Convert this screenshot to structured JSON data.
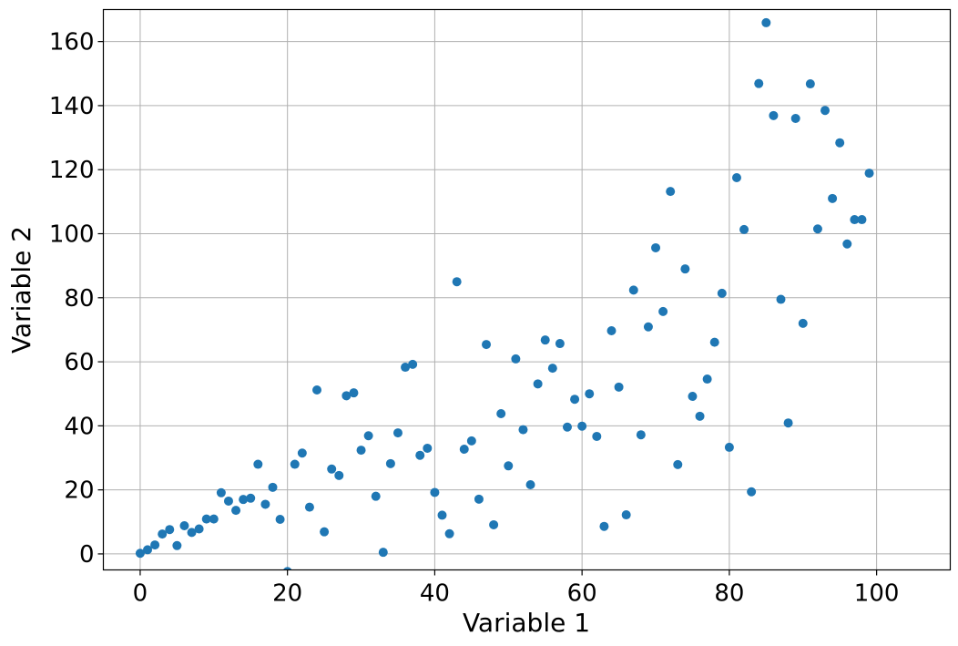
{
  "chart_data": {
    "type": "scatter",
    "title": "",
    "xlabel": "Variable 1",
    "ylabel": "Variable 2",
    "xlim": [
      -5,
      110
    ],
    "ylim": [
      -5,
      170
    ],
    "grid": true,
    "marker_color": "#1f77b4",
    "x_ticks": [
      {
        "value": 0,
        "label": "0"
      },
      {
        "value": 20,
        "label": "20"
      },
      {
        "value": 40,
        "label": "40"
      },
      {
        "value": 60,
        "label": "60"
      },
      {
        "value": 80,
        "label": "80"
      },
      {
        "value": 100,
        "label": "100"
      }
    ],
    "y_ticks": [
      {
        "value": 0,
        "label": "0"
      },
      {
        "value": 20,
        "label": "20"
      },
      {
        "value": 40,
        "label": "40"
      },
      {
        "value": 60,
        "label": "60"
      },
      {
        "value": 80,
        "label": "80"
      },
      {
        "value": 100,
        "label": "100"
      },
      {
        "value": 120,
        "label": "120"
      },
      {
        "value": 140,
        "label": "140"
      },
      {
        "value": 160,
        "label": "160"
      }
    ],
    "points": [
      [
        0,
        0.2
      ],
      [
        1,
        1.3
      ],
      [
        2,
        2.8
      ],
      [
        3,
        6.2
      ],
      [
        4,
        7.6
      ],
      [
        5,
        2.6
      ],
      [
        6,
        8.8
      ],
      [
        7,
        6.7
      ],
      [
        8,
        7.8
      ],
      [
        9,
        10.9
      ],
      [
        10,
        10.9
      ],
      [
        11,
        19.1
      ],
      [
        12,
        16.5
      ],
      [
        13,
        13.6
      ],
      [
        14,
        17.0
      ],
      [
        15,
        17.4
      ],
      [
        16,
        28.0
      ],
      [
        17,
        15.5
      ],
      [
        18,
        20.8
      ],
      [
        19,
        10.8
      ],
      [
        20,
        -5.5
      ],
      [
        21,
        28.0
      ],
      [
        22,
        31.5
      ],
      [
        23,
        14.6
      ],
      [
        24,
        51.2
      ],
      [
        25,
        6.9
      ],
      [
        26,
        26.5
      ],
      [
        27,
        24.5
      ],
      [
        28,
        49.4
      ],
      [
        29,
        50.3
      ],
      [
        30,
        32.4
      ],
      [
        31,
        36.9
      ],
      [
        32,
        18.0
      ],
      [
        33,
        0.5
      ],
      [
        34,
        28.2
      ],
      [
        35,
        37.8
      ],
      [
        36,
        58.3
      ],
      [
        37,
        59.2
      ],
      [
        38,
        30.8
      ],
      [
        39,
        33.0
      ],
      [
        40,
        19.2
      ],
      [
        41,
        12.1
      ],
      [
        42,
        6.3
      ],
      [
        43,
        85.0
      ],
      [
        44,
        32.7
      ],
      [
        45,
        35.3
      ],
      [
        46,
        17.1
      ],
      [
        47,
        65.4
      ],
      [
        48,
        9.1
      ],
      [
        49,
        43.8
      ],
      [
        50,
        27.5
      ],
      [
        51,
        60.9
      ],
      [
        52,
        38.8
      ],
      [
        53,
        21.6
      ],
      [
        54,
        53.1
      ],
      [
        55,
        66.8
      ],
      [
        56,
        58.0
      ],
      [
        57,
        65.7
      ],
      [
        58,
        39.6
      ],
      [
        59,
        48.3
      ],
      [
        60,
        39.9
      ],
      [
        61,
        50.0
      ],
      [
        62,
        36.7
      ],
      [
        63,
        8.6
      ],
      [
        64,
        69.7
      ],
      [
        65,
        52.1
      ],
      [
        66,
        12.2
      ],
      [
        67,
        82.4
      ],
      [
        68,
        37.2
      ],
      [
        69,
        70.9
      ],
      [
        70,
        95.6
      ],
      [
        71,
        75.7
      ],
      [
        72,
        113.2
      ],
      [
        73,
        27.9
      ],
      [
        74,
        89.0
      ],
      [
        75,
        49.2
      ],
      [
        76,
        43.0
      ],
      [
        77,
        54.6
      ],
      [
        78,
        66.1
      ],
      [
        79,
        81.4
      ],
      [
        80,
        33.3
      ],
      [
        81,
        117.5
      ],
      [
        82,
        101.3
      ],
      [
        83,
        19.4
      ],
      [
        84,
        146.9
      ],
      [
        85,
        165.9
      ],
      [
        86,
        136.9
      ],
      [
        87,
        79.5
      ],
      [
        88,
        40.9
      ],
      [
        89,
        136.0
      ],
      [
        90,
        72.0
      ],
      [
        91,
        146.8
      ],
      [
        92,
        101.5
      ],
      [
        93,
        138.5
      ],
      [
        94,
        111.0
      ],
      [
        95,
        128.4
      ],
      [
        96,
        96.8
      ],
      [
        97,
        104.4
      ],
      [
        98,
        104.4
      ],
      [
        99,
        118.9
      ]
    ]
  }
}
